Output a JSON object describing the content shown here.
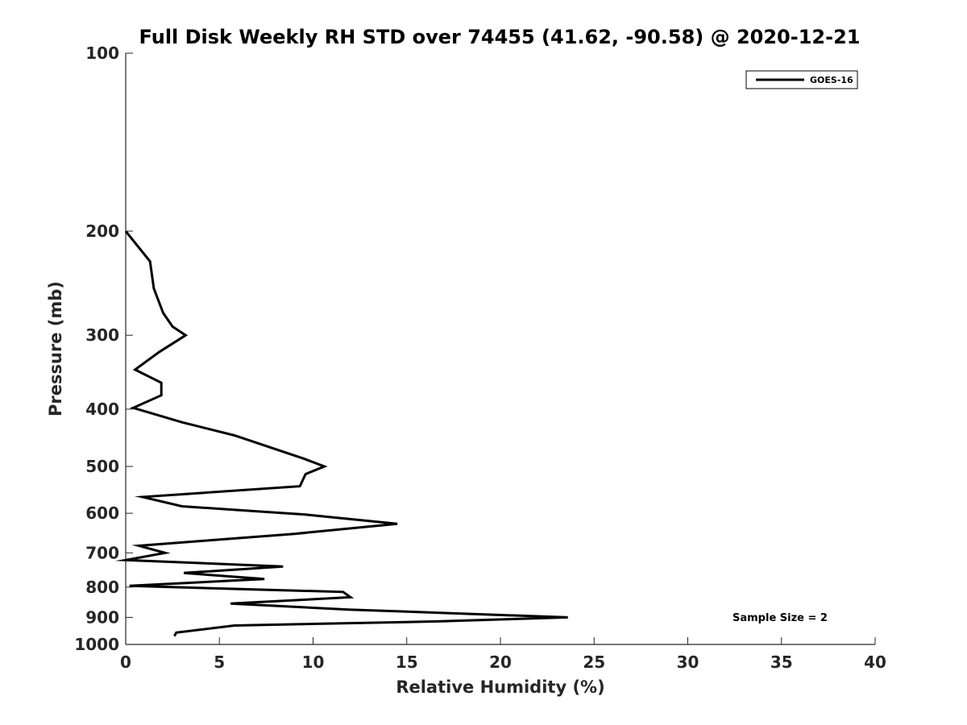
{
  "chart_data": {
    "type": "line",
    "title": "Full Disk Weekly RH STD over 74455 (41.62, -90.58) @ 2020-12-21",
    "xlabel": "Relative Humidity (%)",
    "ylabel": "Pressure (mb)",
    "xlim": [
      0,
      40
    ],
    "ylim": [
      100,
      1000
    ],
    "y_scale": "log",
    "y_reversed": true,
    "x_ticks": [
      0,
      5,
      10,
      15,
      20,
      25,
      30,
      35,
      40
    ],
    "y_ticks": [
      100,
      200,
      300,
      400,
      500,
      600,
      700,
      800,
      900,
      1000
    ],
    "grid": false,
    "legend_position": "top-right",
    "series": [
      {
        "name": "GOES-16",
        "color": "#000000",
        "points": [
          [
            0.0,
            200
          ],
          [
            1.3,
            225
          ],
          [
            1.5,
            250
          ],
          [
            2.0,
            275
          ],
          [
            2.5,
            290
          ],
          [
            3.2,
            300
          ],
          [
            1.8,
            320
          ],
          [
            0.5,
            343
          ],
          [
            1.9,
            361
          ],
          [
            1.9,
            379
          ],
          [
            0.4,
            398
          ],
          [
            3.0,
            421
          ],
          [
            5.8,
            443
          ],
          [
            9.5,
            485
          ],
          [
            10.6,
            500
          ],
          [
            9.6,
            515
          ],
          [
            9.3,
            540
          ],
          [
            0.9,
            563
          ],
          [
            3.0,
            584
          ],
          [
            9.6,
            603
          ],
          [
            14.5,
            625
          ],
          [
            9.0,
            650
          ],
          [
            4.4,
            667
          ],
          [
            0.7,
            681
          ],
          [
            2.1,
            700
          ],
          [
            0.0,
            720
          ],
          [
            8.4,
            738
          ],
          [
            3.1,
            757
          ],
          [
            7.4,
            775
          ],
          [
            0.2,
            796
          ],
          [
            11.6,
            815
          ],
          [
            12.0,
            832
          ],
          [
            5.6,
            853
          ],
          [
            11.9,
            873
          ],
          [
            23.6,
            900
          ],
          [
            16.8,
            914
          ],
          [
            5.8,
            929
          ],
          [
            2.7,
            955
          ],
          [
            2.6,
            968
          ]
        ]
      }
    ],
    "annotations": [
      {
        "text": "Sample Size = 2"
      }
    ]
  }
}
